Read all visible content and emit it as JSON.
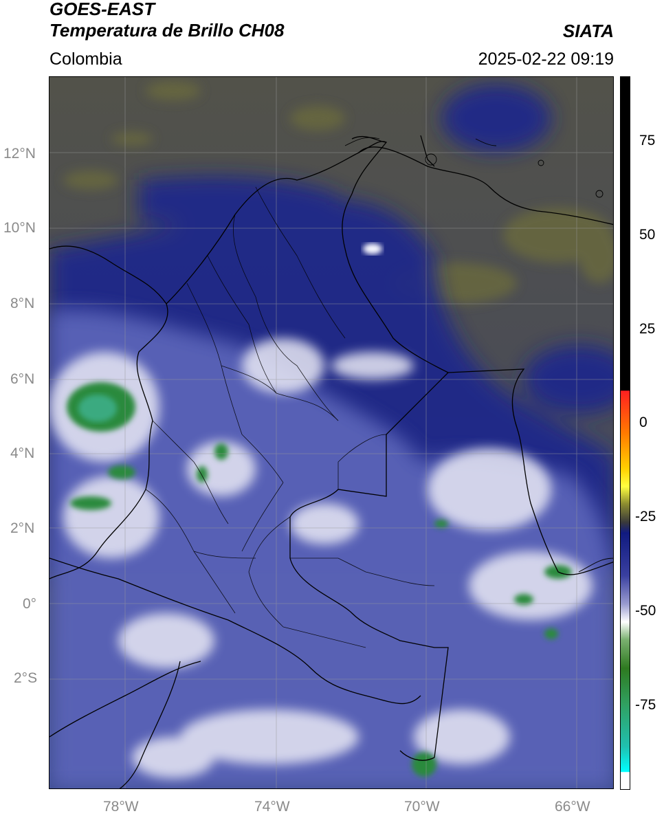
{
  "header": {
    "title_line1": "GOES-EAST",
    "title_line2": "Temperatura de Brillo CH08",
    "region": "Colombia",
    "source": "SIATA",
    "timestamp": "2025-02-22 09:19"
  },
  "map": {
    "lat_labels": [
      "12°N",
      "10°N",
      "8°N",
      "6°N",
      "4°N",
      "2°N",
      "0°",
      "2°S"
    ],
    "lon_labels": [
      "78°W",
      "74°W",
      "70°W",
      "66°W"
    ],
    "colors": {
      "background_dry": "#5a5a48",
      "moist_navy": "#1c2a8e",
      "cloud_blue": "#6c74c0",
      "cloud_white": "#f0f0f8",
      "cold_green": "#2e8a3a",
      "borders": "#000000",
      "gridlines": "#9a9a9a"
    }
  },
  "colorbar": {
    "ticks": [
      "75",
      "50",
      "25",
      "0",
      "-25",
      "-50",
      "-75"
    ]
  }
}
